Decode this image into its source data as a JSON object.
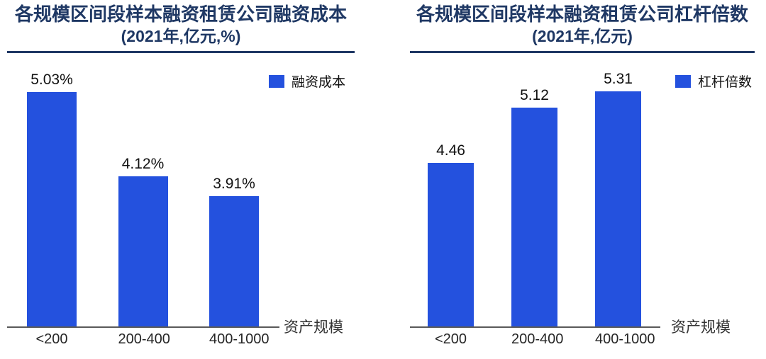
{
  "colors": {
    "background": "#FFFFFF",
    "bar": "#2451DE",
    "title_navy": "#1F3864",
    "value_label": "#111111",
    "tick_label": "#262626",
    "axis_line": "#595959",
    "axis_title": "#333333"
  },
  "chart_data": [
    {
      "type": "bar",
      "title": "各规模区间段样本融资租赁公司融资成本",
      "subtitle": "(2021年,亿元,%)",
      "legend": "融资成本",
      "xlabel": "资产规模",
      "categories": [
        "<200",
        "200-400",
        "400-1000"
      ],
      "values": [
        5.03,
        4.12,
        3.91
      ],
      "value_labels": [
        "5.03%",
        "4.12%",
        "3.91%"
      ],
      "ylim": [
        2.5,
        5.45
      ],
      "grid": false,
      "legend_position": "top-right"
    },
    {
      "type": "bar",
      "title": "各规模区间段样本融资租赁公司杠杆倍数",
      "subtitle": "(2021年,亿元)",
      "legend": "杠杆倍数",
      "xlabel": "资产规模",
      "categories": [
        "<200",
        "200-400",
        "400-1000"
      ],
      "values": [
        4.46,
        5.12,
        5.31
      ],
      "value_labels": [
        "4.46",
        "5.12",
        "5.31"
      ],
      "ylim": [
        2.5,
        5.77
      ],
      "grid": false,
      "legend_position": "top-right"
    }
  ]
}
